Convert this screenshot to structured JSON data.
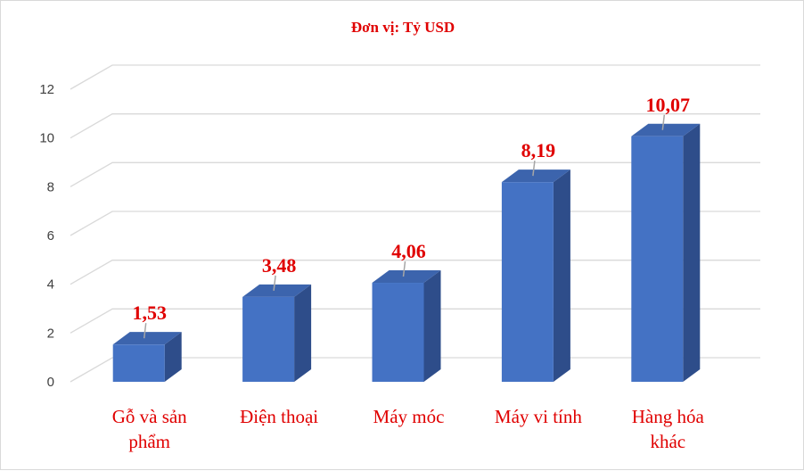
{
  "chart_data": {
    "type": "bar",
    "title": "Đơn vị: Tỷ USD",
    "xlabel": "",
    "ylabel": "",
    "categories": [
      [
        "Gỗ và sản",
        "phẩm"
      ],
      [
        "Điện thoại"
      ],
      [
        "Máy móc"
      ],
      [
        "Máy vi tính"
      ],
      [
        "Hàng hóa",
        "khác"
      ]
    ],
    "values": [
      1.53,
      3.48,
      4.06,
      8.19,
      10.07
    ],
    "value_labels": [
      "1,53",
      "3,48",
      "4,06",
      "8,19",
      "10,07"
    ],
    "ylim": [
      0,
      12
    ],
    "yticks": [
      0,
      2,
      4,
      6,
      8,
      10,
      12
    ],
    "grid": true,
    "three_d": true,
    "colors": {
      "bar_front": "#4472c4",
      "bar_side": "#2e4d8a",
      "bar_top": "#3c64ad",
      "labels": "#e00000",
      "grid": "#d9d9d9",
      "ticks": "#404040"
    }
  }
}
